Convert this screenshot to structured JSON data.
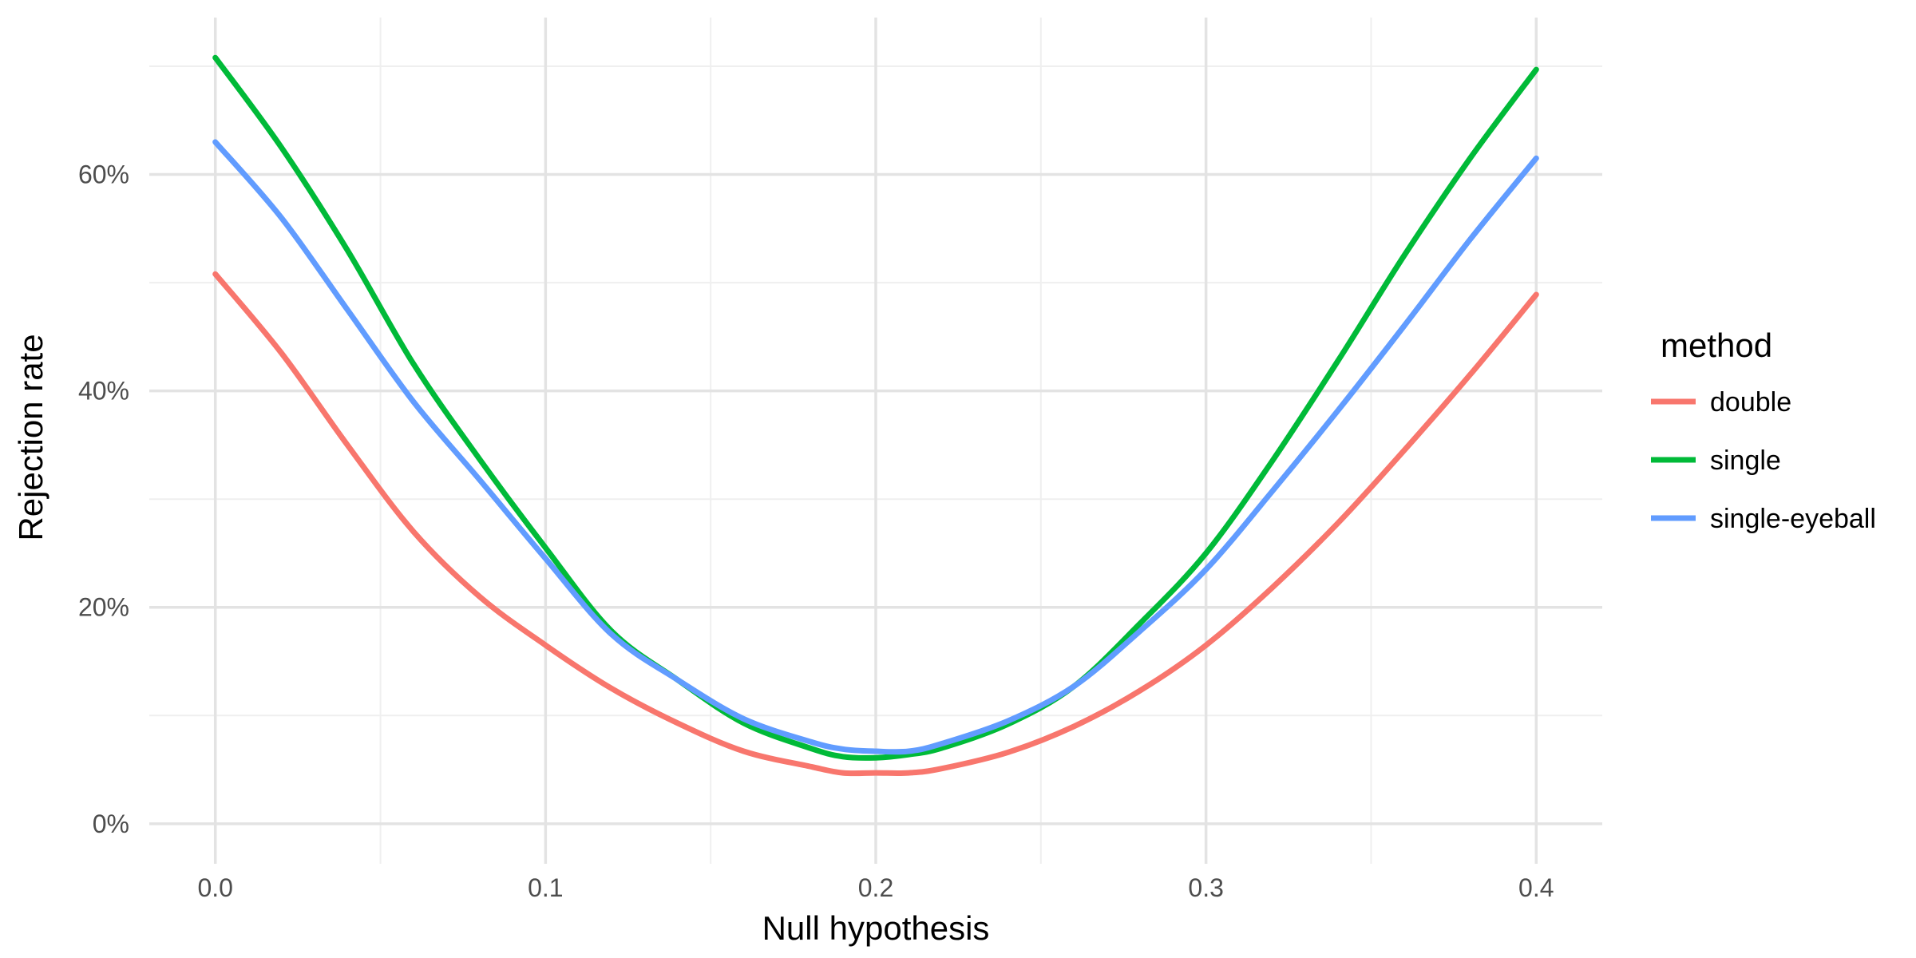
{
  "chart_data": {
    "type": "line",
    "xlabel": "Null hypothesis",
    "ylabel": "Rejection rate",
    "xlim": [
      -0.02,
      0.42
    ],
    "ylim": [
      -0.037,
      0.745
    ],
    "x_ticks": [
      0.0,
      0.1,
      0.2,
      0.3,
      0.4
    ],
    "x_tick_labels": [
      "0.0",
      "0.1",
      "0.2",
      "0.3",
      "0.4"
    ],
    "x_minor_ticks": [
      0.05,
      0.15,
      0.25,
      0.35
    ],
    "y_ticks": [
      0,
      0.2,
      0.4,
      0.6
    ],
    "y_tick_labels": [
      "0%",
      "20%",
      "40%",
      "60%"
    ],
    "y_minor_ticks": [
      0.1,
      0.3,
      0.5,
      0.7
    ],
    "grid": true,
    "legend": {
      "title": "method",
      "position": "right"
    },
    "x": [
      0.0,
      0.02,
      0.04,
      0.06,
      0.08,
      0.1,
      0.12,
      0.14,
      0.16,
      0.18,
      0.19,
      0.2,
      0.21,
      0.22,
      0.24,
      0.26,
      0.28,
      0.3,
      0.32,
      0.34,
      0.36,
      0.38,
      0.4
    ],
    "series": [
      {
        "name": "double",
        "color": "#F8766D",
        "values": [
          0.508,
          0.435,
          0.35,
          0.27,
          0.21,
          0.165,
          0.125,
          0.093,
          0.067,
          0.053,
          0.047,
          0.047,
          0.047,
          0.051,
          0.066,
          0.09,
          0.123,
          0.165,
          0.218,
          0.278,
          0.345,
          0.415,
          0.489
        ]
      },
      {
        "name": "single",
        "color": "#00BA38",
        "values": [
          0.708,
          0.625,
          0.53,
          0.425,
          0.337,
          0.255,
          0.178,
          0.133,
          0.093,
          0.07,
          0.062,
          0.061,
          0.064,
          0.07,
          0.092,
          0.127,
          0.185,
          0.25,
          0.335,
          0.428,
          0.525,
          0.615,
          0.697
        ]
      },
      {
        "name": "single-eyeball",
        "color": "#619CFF",
        "values": [
          0.63,
          0.56,
          0.475,
          0.39,
          0.318,
          0.245,
          0.175,
          0.133,
          0.097,
          0.076,
          0.069,
          0.067,
          0.067,
          0.074,
          0.095,
          0.127,
          0.178,
          0.235,
          0.307,
          0.382,
          0.46,
          0.54,
          0.615
        ]
      }
    ]
  }
}
